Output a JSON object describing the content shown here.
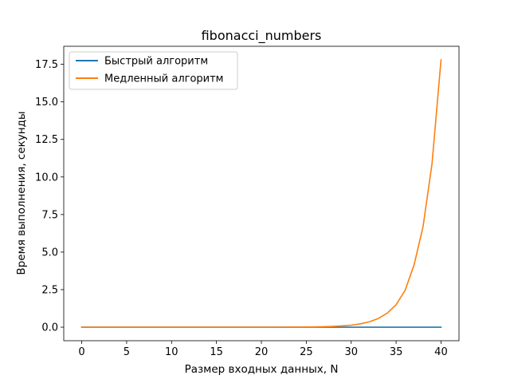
{
  "chart_data": {
    "type": "line",
    "title": "fibonacci_numbers",
    "xlabel": "Размер входных данных, N",
    "ylabel": "Время выполнения, секунды",
    "xlim": [
      -2,
      42
    ],
    "ylim": [
      -0.9,
      18.7
    ],
    "xticks": [
      0,
      5,
      10,
      15,
      20,
      25,
      30,
      35,
      40
    ],
    "xtick_labels": [
      "0",
      "5",
      "10",
      "15",
      "20",
      "25",
      "30",
      "35",
      "40"
    ],
    "yticks": [
      0,
      2.5,
      5,
      7.5,
      10,
      12.5,
      15,
      17.5
    ],
    "ytick_labels": [
      "0.0",
      "2.5",
      "5.0",
      "7.5",
      "10.0",
      "12.5",
      "15.0",
      "17.5"
    ],
    "grid": false,
    "legend_position": "upper-left",
    "x": [
      0,
      1,
      2,
      3,
      4,
      5,
      6,
      7,
      8,
      9,
      10,
      11,
      12,
      13,
      14,
      15,
      16,
      17,
      18,
      19,
      20,
      21,
      22,
      23,
      24,
      25,
      26,
      27,
      28,
      29,
      30,
      31,
      32,
      33,
      34,
      35,
      36,
      37,
      38,
      39,
      40
    ],
    "series": [
      {
        "name": "Быстрый алгоритм",
        "color": "#1f77b4",
        "values": [
          0,
          0,
          0,
          0,
          0,
          0,
          0,
          0,
          0,
          0,
          0,
          0,
          0,
          0,
          0,
          0,
          0,
          0,
          0,
          0,
          0,
          0,
          0,
          0,
          0,
          0,
          0,
          0,
          0,
          0,
          0,
          0,
          0,
          0,
          0,
          0,
          0,
          0,
          0,
          0,
          0
        ]
      },
      {
        "name": "Медленный алгоритм",
        "color": "#ff7f0e",
        "values": [
          0,
          0,
          0,
          0,
          0,
          0,
          0,
          0,
          0,
          0,
          0,
          0,
          0,
          0,
          0,
          0,
          0,
          0,
          0,
          0,
          0.001,
          0.002,
          0.003,
          0.005,
          0.008,
          0.012,
          0.02,
          0.032,
          0.052,
          0.084,
          0.136,
          0.22,
          0.356,
          0.575,
          0.93,
          1.5,
          2.45,
          4.15,
          6.7,
          10.9,
          17.8
        ]
      }
    ]
  }
}
